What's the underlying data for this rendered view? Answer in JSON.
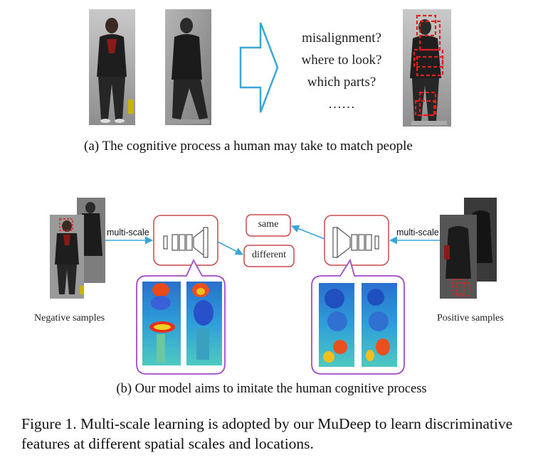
{
  "panel_a": {
    "questions": [
      "misalignment?",
      "where to look?",
      "which parts?",
      "……"
    ],
    "caption": "(a) The cognitive process a human may take to match people"
  },
  "panel_b": {
    "negative_label": "Negative samples",
    "positive_label": "Positive samples",
    "multiscale_left": "multi-scale",
    "multiscale_right": "multi-scale",
    "output_same": "same",
    "output_different": "different",
    "caption": "(b) Our model aims to imitate the human cognitive process"
  },
  "figure_caption": "Figure 1. Multi-scale learning is adopted by our MuDeep to learn discriminative features at different spatial scales and locations.",
  "colors": {
    "arrow": "#3aa6d8",
    "box_border": "#c84a4a",
    "bubble_border": "#a04bc8",
    "hatch_red": "#e02020"
  }
}
